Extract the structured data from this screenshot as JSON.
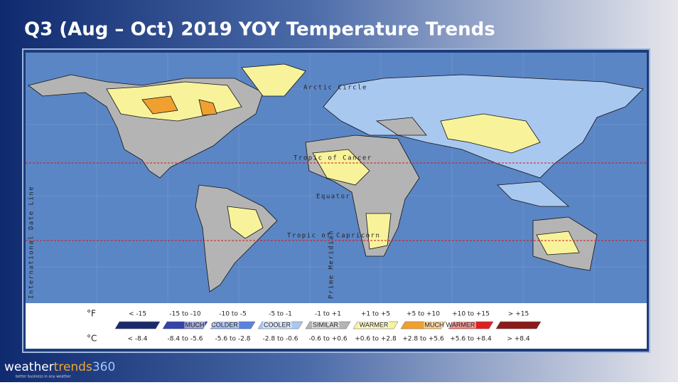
{
  "title": "Q3 (Aug – Oct) 2019 YOY Temperature Trends",
  "map": {
    "arctic_circle": "Arctic Circle",
    "tropic_of_cancer": "Tropic of Cancer",
    "equator": "Equator",
    "tropic_of_capricorn": "Tropic of Capricorn",
    "date_line": "International Date Line",
    "prime_meridian": "Prime Meridian"
  },
  "legend": {
    "f_unit": "°F",
    "c_unit": "°C",
    "items": [
      {
        "f": "< -15",
        "c": "< -8.4",
        "color": "#1c2a6b"
      },
      {
        "f": "-15 to -10",
        "c": "-8.4 to -5.6",
        "color": "#3344aa"
      },
      {
        "f": "-10 to -5",
        "c": "-5.6 to -2.8",
        "color": "#5a82e0"
      },
      {
        "f": "-5 to -1",
        "c": "-2.8 to -0.6",
        "color": "#a9c8f0"
      },
      {
        "f": "-1 to +1",
        "c": "-0.6 to +0.6",
        "color": "#b4b4b4"
      },
      {
        "f": "+1 to +5",
        "c": "+0.6 to +2.8",
        "color": "#f8f39a"
      },
      {
        "f": "+5 to +10",
        "c": "+2.8 to +5.6",
        "color": "#f0a030"
      },
      {
        "f": "+10 to +15",
        "c": "+5.6 to +8.4",
        "color": "#e02020"
      },
      {
        "f": "> +15",
        "c": "> +8.4",
        "color": "#8b1a1a"
      }
    ],
    "groups": [
      "MUCH",
      "COLDER",
      "COOLER",
      "SIMILAR",
      "WARMER",
      "MUCH",
      "WARMER"
    ]
  },
  "logo": {
    "part1": "weather",
    "part2": "trends",
    "part3": "360",
    "tagline": "better business in any weather"
  }
}
